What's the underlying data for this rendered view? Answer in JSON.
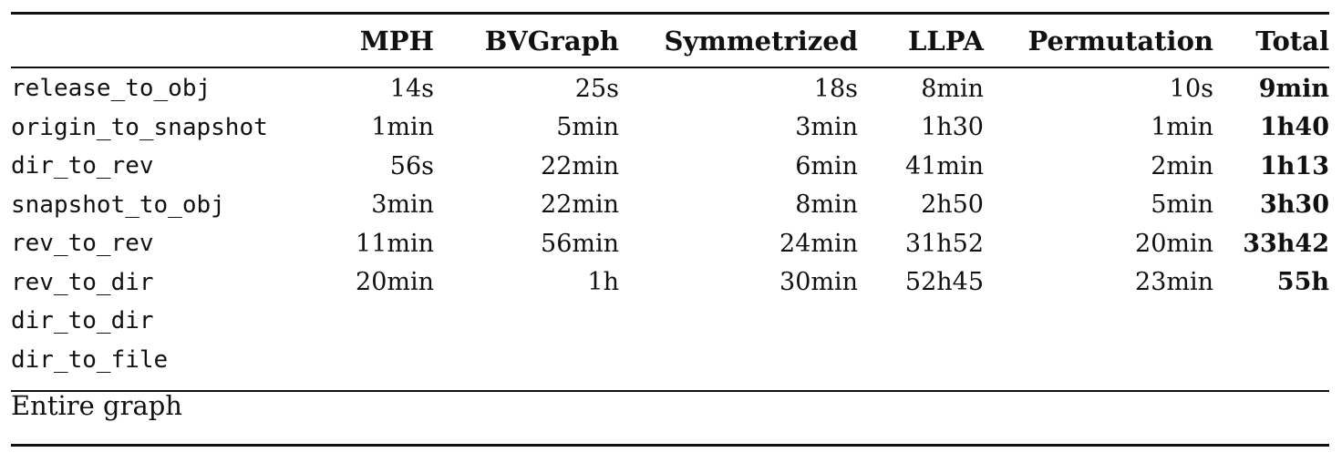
{
  "table": {
    "headers": [
      "",
      "MPH",
      "BVGraph",
      "Symmetrized",
      "LLPA",
      "Permutation",
      "Total"
    ],
    "rows": [
      {
        "graph": "release_to_obj",
        "mph": "14s",
        "bvgraph": "25s",
        "symmetrized": "18s",
        "llpa": "8min",
        "permutation": "10s",
        "total": "9min"
      },
      {
        "graph": "origin_to_snapshot",
        "mph": "1min",
        "bvgraph": "5min",
        "symmetrized": "3min",
        "llpa": "1h30",
        "permutation": "1min",
        "total": "1h40"
      },
      {
        "graph": "dir_to_rev",
        "mph": "56s",
        "bvgraph": "22min",
        "symmetrized": "6min",
        "llpa": "41min",
        "permutation": "2min",
        "total": "1h13"
      },
      {
        "graph": "snapshot_to_obj",
        "mph": "3min",
        "bvgraph": "22min",
        "symmetrized": "8min",
        "llpa": "2h50",
        "permutation": "5min",
        "total": "3h30"
      },
      {
        "graph": "rev_to_rev",
        "mph": "11min",
        "bvgraph": "56min",
        "symmetrized": "24min",
        "llpa": "31h52",
        "permutation": "20min",
        "total": "33h42"
      },
      {
        "graph": "rev_to_dir",
        "mph": "20min",
        "bvgraph": "1h",
        "symmetrized": "30min",
        "llpa": "52h45",
        "permutation": "23min",
        "total": "55h"
      },
      {
        "graph": "dir_to_dir",
        "mph": "",
        "bvgraph": "",
        "symmetrized": "",
        "llpa": "",
        "permutation": "",
        "total": ""
      },
      {
        "graph": "dir_to_file",
        "mph": "",
        "bvgraph": "",
        "symmetrized": "",
        "llpa": "",
        "permutation": "",
        "total": ""
      }
    ],
    "footer_label": "Entire graph"
  }
}
